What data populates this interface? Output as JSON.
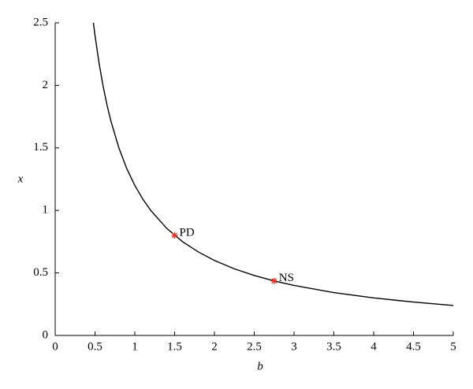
{
  "chart_data": {
    "type": "line",
    "xlabel": "b",
    "ylabel": "x",
    "x": [
      0.48,
      0.5,
      0.55,
      0.6,
      0.65,
      0.7,
      0.8,
      0.9,
      1,
      1.1,
      1.2,
      1.4,
      1.6,
      1.8,
      2,
      2.25,
      2.5,
      2.75,
      3,
      3.5,
      4,
      4.5,
      5
    ],
    "series": [
      {
        "color": "#000000",
        "values": [
          2.5,
          2.4,
          2.182,
          2,
          1.846,
          1.714,
          1.5,
          1.333,
          1.2,
          1.091,
          1,
          0.857,
          0.75,
          0.667,
          0.6,
          0.533,
          0.48,
          0.436,
          0.4,
          0.343,
          0.3,
          0.267,
          0.24
        ]
      }
    ],
    "points": [
      {
        "label": "PD",
        "x": 1.5,
        "y": 0.8
      },
      {
        "label": "NS",
        "x": 2.75,
        "y": 0.436
      }
    ],
    "point_color": "#e8321e",
    "xlim": [
      0,
      5
    ],
    "ylim": [
      0,
      2.5
    ],
    "xticks": [
      0,
      0.5,
      1,
      1.5,
      2,
      2.5,
      3,
      3.5,
      4,
      4.5,
      5
    ],
    "yticks": [
      0,
      0.5,
      1,
      1.5,
      2,
      2.5
    ]
  }
}
